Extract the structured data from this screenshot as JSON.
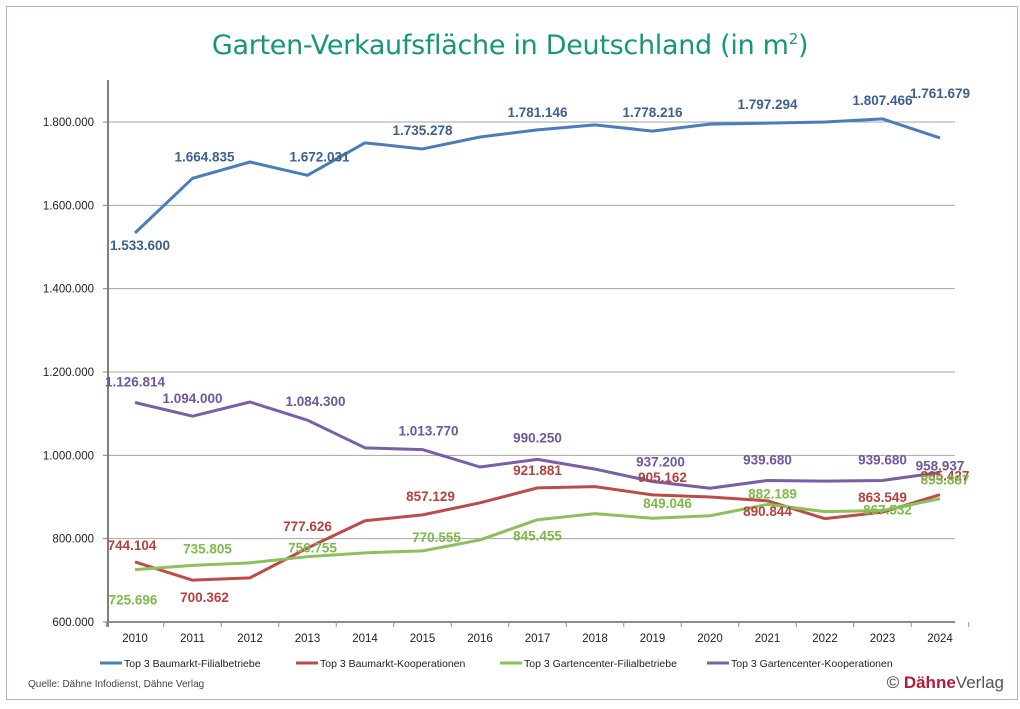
{
  "chart_data": {
    "type": "line",
    "title": "Garten-Verkaufsfläche in Deutschland (in m",
    "title_superscript": "2",
    "title_suffix": ")",
    "xlabel": "",
    "ylabel": "",
    "x": [
      2010,
      2011,
      2012,
      2013,
      2014,
      2015,
      2016,
      2017,
      2018,
      2019,
      2020,
      2021,
      2022,
      2023,
      2024
    ],
    "x_tick_labels": [
      "2010",
      "2011",
      "2012",
      "2013",
      "2014",
      "2015",
      "2016",
      "2017",
      "2018",
      "2019",
      "2020",
      "2021",
      "2022",
      "2023",
      "2024"
    ],
    "ylim": [
      600000,
      1900000
    ],
    "y_ticks": [
      600000,
      800000,
      1000000,
      1200000,
      1400000,
      1600000,
      1800000
    ],
    "y_tick_labels": [
      "600.000",
      "800.000",
      "1.000.000",
      "1.200.000",
      "1.400.000",
      "1.600.000",
      "1.800.000"
    ],
    "grid": "horizontal",
    "legend_position": "bottom",
    "series": [
      {
        "name": "Top 3 Baumarkt-Filialbetriebe",
        "color": "#4a7ebb",
        "label_color": "#3c5f91",
        "values": [
          1533600,
          1664835,
          1704000,
          1672031,
          1750000,
          1735278,
          1764000,
          1781146,
          1793000,
          1778216,
          1795000,
          1797294,
          1800000,
          1807466,
          1761679
        ],
        "labels": [
          {
            "x": 2010,
            "text": "1.533.600"
          },
          {
            "x": 2011,
            "text": "1.664.835"
          },
          {
            "x": 2013,
            "text": "1.672.031"
          },
          {
            "x": 2015,
            "text": "1.735.278"
          },
          {
            "x": 2017,
            "text": "1.781.146"
          },
          {
            "x": 2019,
            "text": "1.778.216"
          },
          {
            "x": 2021,
            "text": "1.797.294"
          },
          {
            "x": 2023,
            "text": "1.807.466"
          },
          {
            "x": 2024,
            "text": "1.761.679"
          }
        ]
      },
      {
        "name": "Top 3 Baumarkt-Kooperationen",
        "color": "#be4b48",
        "label_color": "#b5403d",
        "values": [
          744104,
          700362,
          706000,
          777626,
          843000,
          857129,
          886000,
          921881,
          925000,
          905162,
          900000,
          890844,
          848000,
          863549,
          905427
        ],
        "labels": [
          {
            "x": 2010,
            "text": "744.104"
          },
          {
            "x": 2011,
            "text": "700.362"
          },
          {
            "x": 2013,
            "text": "777.626"
          },
          {
            "x": 2015,
            "text": "857.129"
          },
          {
            "x": 2017,
            "text": "921.881"
          },
          {
            "x": 2019,
            "text": "905.162"
          },
          {
            "x": 2021,
            "text": "890.844"
          },
          {
            "x": 2023,
            "text": "863.549"
          },
          {
            "x": 2024,
            "text": "905.427"
          }
        ]
      },
      {
        "name": "Top 3 Gartencenter-Filialbetriebe",
        "color": "#8cc05a",
        "label_color": "#7dba4a",
        "values": [
          725696,
          735805,
          742000,
          756755,
          766000,
          770555,
          797000,
          845455,
          860000,
          849046,
          855000,
          882189,
          865000,
          867532,
          895887
        ],
        "labels": [
          {
            "x": 2010,
            "text": "725.696"
          },
          {
            "x": 2011,
            "text": "735.805"
          },
          {
            "x": 2013,
            "text": "756.755"
          },
          {
            "x": 2015,
            "text": "770.555"
          },
          {
            "x": 2017,
            "text": "845.455"
          },
          {
            "x": 2019,
            "text": "849.046"
          },
          {
            "x": 2021,
            "text": "882.189"
          },
          {
            "x": 2023,
            "text": "867.532"
          },
          {
            "x": 2024,
            "text": "895.887"
          }
        ]
      },
      {
        "name": "Top 3 Gartencenter-Kooperationen",
        "color": "#7a5ea8",
        "label_color": "#6f56a0",
        "values": [
          1126814,
          1094000,
          1128000,
          1084300,
          1018000,
          1013770,
          972000,
          990250,
          967000,
          937200,
          921000,
          939680,
          938000,
          939680,
          958937
        ],
        "labels": [
          {
            "x": 2010,
            "text": "1.126.814"
          },
          {
            "x": 2011,
            "text": "1.094.000"
          },
          {
            "x": 2013,
            "text": "1.084.300"
          },
          {
            "x": 2015,
            "text": "1.013.770"
          },
          {
            "x": 2017,
            "text": "990.250"
          },
          {
            "x": 2019,
            "text": "937.200"
          },
          {
            "x": 2021,
            "text": "939.680"
          },
          {
            "x": 2023,
            "text": "939.680"
          },
          {
            "x": 2024,
            "text": "958.937"
          }
        ]
      }
    ]
  },
  "footer": {
    "source": "Quelle: Dähne Infodienst, Dähne Verlag",
    "copyright_symbol": "©",
    "brand_bold": "Dähne",
    "brand_rest": "Verlag"
  }
}
